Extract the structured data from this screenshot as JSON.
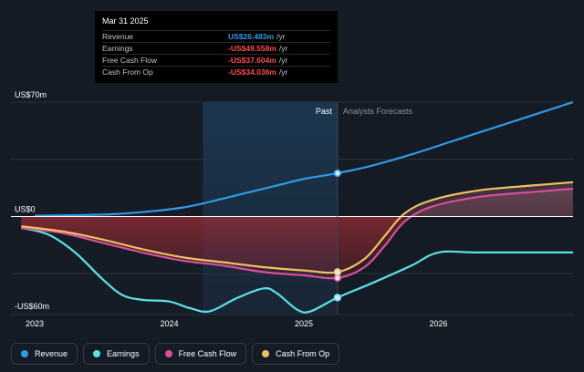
{
  "tooltip": {
    "date": "Mar 31 2025",
    "rows": [
      {
        "label": "Revenue",
        "value": "US$26.483m",
        "unit": "/yr",
        "color": "#2e9be6"
      },
      {
        "label": "Earnings",
        "value": "-US$49.558m",
        "unit": "/yr",
        "color": "#ff4d4d"
      },
      {
        "label": "Free Cash Flow",
        "value": "-US$37.604m",
        "unit": "/yr",
        "color": "#ff4d4d"
      },
      {
        "label": "Cash From Op",
        "value": "-US$34.036m",
        "unit": "/yr",
        "color": "#ff4d4d"
      }
    ]
  },
  "legend": [
    {
      "label": "Revenue",
      "color": "#2e9be6"
    },
    {
      "label": "Earnings",
      "color": "#5ce0e6"
    },
    {
      "label": "Free Cash Flow",
      "color": "#d94f9b"
    },
    {
      "label": "Cash From Op",
      "color": "#f0c060"
    }
  ],
  "chart_data": {
    "type": "line",
    "y_unit": "US$m",
    "ylim": [
      -60,
      70
    ],
    "xlim": [
      2023.0,
      2027.0
    ],
    "y_tick_labels": [
      {
        "value": 70,
        "label": "US$70m"
      },
      {
        "value": 0,
        "label": "US$0"
      },
      {
        "value": -60,
        "label": "-US$60m"
      }
    ],
    "x_tick_labels": [
      {
        "value": 2023.0,
        "label": "2023"
      },
      {
        "value": 2024.0,
        "label": "2024"
      },
      {
        "value": 2025.0,
        "label": "2025"
      },
      {
        "value": 2026.0,
        "label": "2026"
      }
    ],
    "divider_x": 2025.25,
    "shade_from_x": 2024.25,
    "past_label": "Past",
    "forecast_label": "Analysts Forecasts",
    "series": [
      {
        "name": "Revenue",
        "color": "#2e9be6",
        "marker_x": 2025.25,
        "points": [
          [
            2023.0,
            0.5
          ],
          [
            2023.3,
            0.8
          ],
          [
            2023.6,
            1.5
          ],
          [
            2023.9,
            3.5
          ],
          [
            2024.1,
            5.5
          ],
          [
            2024.25,
            8
          ],
          [
            2024.5,
            13
          ],
          [
            2024.8,
            19
          ],
          [
            2025.0,
            23
          ],
          [
            2025.25,
            26.5
          ],
          [
            2025.5,
            31
          ],
          [
            2025.8,
            38
          ],
          [
            2026.1,
            46
          ],
          [
            2026.4,
            54
          ],
          [
            2026.7,
            62
          ],
          [
            2027.0,
            70
          ]
        ]
      },
      {
        "name": "Earnings",
        "color": "#5ce0e6",
        "marker_x": 2025.25,
        "fill": false,
        "points": [
          [
            2022.9,
            -7
          ],
          [
            2023.1,
            -11
          ],
          [
            2023.3,
            -22
          ],
          [
            2023.5,
            -38
          ],
          [
            2023.65,
            -48
          ],
          [
            2023.8,
            -51
          ],
          [
            2024.0,
            -52
          ],
          [
            2024.15,
            -56
          ],
          [
            2024.3,
            -58
          ],
          [
            2024.5,
            -50
          ],
          [
            2024.7,
            -44
          ],
          [
            2024.8,
            -47
          ],
          [
            2024.95,
            -57
          ],
          [
            2025.05,
            -58
          ],
          [
            2025.25,
            -49.6
          ],
          [
            2025.5,
            -41
          ],
          [
            2025.8,
            -30
          ],
          [
            2026.0,
            -22
          ],
          [
            2026.3,
            -22
          ],
          [
            2027.0,
            -22
          ]
        ]
      },
      {
        "name": "Free Cash Flow",
        "color": "#d94f9b",
        "marker_x": 2025.25,
        "fill": true,
        "points": [
          [
            2022.9,
            -7
          ],
          [
            2023.2,
            -10
          ],
          [
            2023.5,
            -16
          ],
          [
            2023.8,
            -22
          ],
          [
            2024.1,
            -27
          ],
          [
            2024.4,
            -30
          ],
          [
            2024.7,
            -34
          ],
          [
            2025.0,
            -36
          ],
          [
            2025.25,
            -37.6
          ],
          [
            2025.45,
            -31
          ],
          [
            2025.6,
            -18
          ],
          [
            2025.75,
            -3
          ],
          [
            2025.95,
            6
          ],
          [
            2026.3,
            12
          ],
          [
            2026.7,
            15
          ],
          [
            2027.0,
            17
          ]
        ]
      },
      {
        "name": "Cash From Op",
        "color": "#f0c060",
        "marker_x": 2025.25,
        "fill": true,
        "points": [
          [
            2022.9,
            -6
          ],
          [
            2023.2,
            -9
          ],
          [
            2023.5,
            -14
          ],
          [
            2023.8,
            -20
          ],
          [
            2024.1,
            -25
          ],
          [
            2024.4,
            -28
          ],
          [
            2024.7,
            -31
          ],
          [
            2025.0,
            -33
          ],
          [
            2025.25,
            -34
          ],
          [
            2025.45,
            -26
          ],
          [
            2025.6,
            -12
          ],
          [
            2025.75,
            2
          ],
          [
            2025.95,
            10
          ],
          [
            2026.3,
            16
          ],
          [
            2026.7,
            19
          ],
          [
            2027.0,
            21
          ]
        ]
      }
    ]
  }
}
